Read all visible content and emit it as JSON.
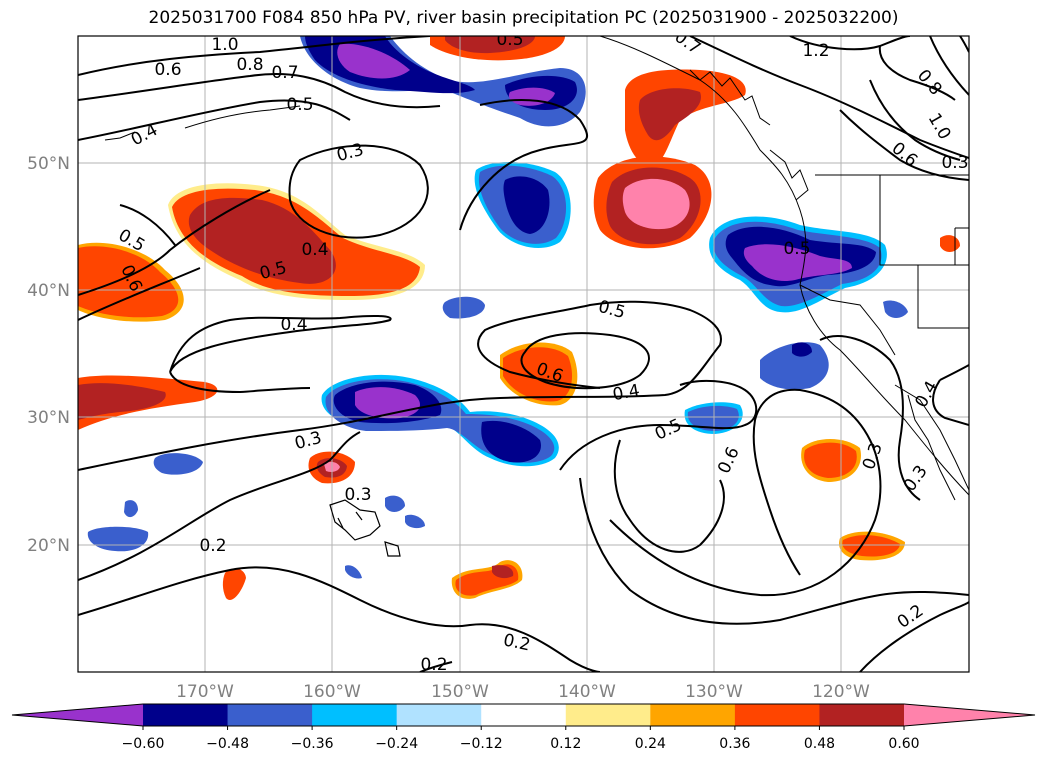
{
  "title": "2025031700 F084 850 hPa PV, river basin precipitation PC (2025031900 - 2025032200)",
  "lat_labels": [
    "50°N",
    "40°N",
    "30°N",
    "20°N"
  ],
  "lon_labels": [
    "170°W",
    "160°W",
    "150°W",
    "140°W",
    "130°W",
    "120°W"
  ],
  "colorbar": {
    "colors": [
      "#9932cc",
      "#00008b",
      "#3a5fcd",
      "#00bfff",
      "#b0e2ff",
      "#ffffff",
      "#ffec8b",
      "#ffa500",
      "#ff4500",
      "#b22222",
      "#ff82ab"
    ],
    "ticks": [
      "−0.60",
      "−0.48",
      "−0.36",
      "−0.24",
      "−0.12",
      "0.12",
      "0.24",
      "0.36",
      "0.48",
      "0.60"
    ]
  },
  "contour_labels": [
    "1.0",
    "0.8",
    "0.7",
    "0.6",
    "0.5",
    "0.4",
    "0.3",
    "0.4",
    "0.5",
    "0.5",
    "0.6",
    "0.4",
    "0.3",
    "0.2",
    "0.3",
    "0.5",
    "0.6",
    "0.4",
    "0.5",
    "0.6",
    "0.2",
    "0.2",
    "0.3",
    "0.3",
    "0.2",
    "1.2",
    "0.8",
    "1.0",
    "0.6",
    "0.3",
    "0.5",
    "0.7",
    "0.4",
    "0.5"
  ]
}
